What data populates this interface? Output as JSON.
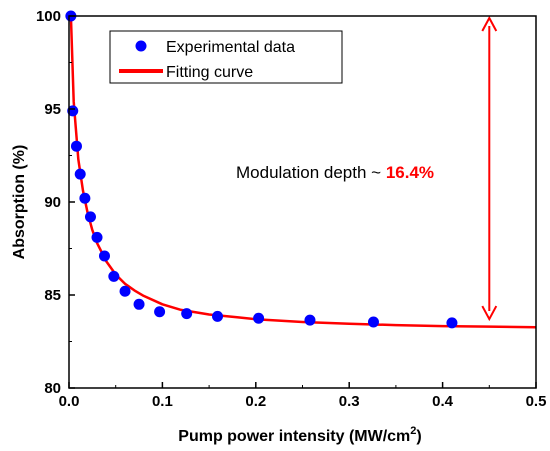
{
  "chart_data": {
    "type": "scatter",
    "xlabel": "Pump power intensity (MW/cm",
    "xlabel_sup": "2",
    "xlabel_end": ")",
    "ylabel": "Absorption (%)",
    "xlim": [
      0,
      0.5
    ],
    "ylim": [
      80,
      100
    ],
    "xticks": [
      "0.0",
      "0.1",
      "0.2",
      "0.3",
      "0.4",
      "0.5"
    ],
    "yticks": [
      "80",
      "85",
      "90",
      "95",
      "100"
    ],
    "grid": false,
    "legend_position": "top-left",
    "series": [
      {
        "name": "Experimental data",
        "kind": "points",
        "color": "#0000ff",
        "x": [
          0.002,
          0.004,
          0.008,
          0.012,
          0.017,
          0.023,
          0.03,
          0.038,
          0.048,
          0.06,
          0.075,
          0.097,
          0.126,
          0.159,
          0.203,
          0.258,
          0.326,
          0.41
        ],
        "y": [
          100.0,
          94.9,
          93.0,
          91.5,
          90.2,
          89.2,
          88.1,
          87.1,
          86.0,
          85.2,
          84.5,
          84.1,
          84.0,
          83.85,
          83.75,
          83.65,
          83.55,
          83.5
        ]
      },
      {
        "name": "Fitting curve",
        "kind": "line",
        "color": "#ff0000",
        "x": [
          0.002,
          0.005,
          0.01,
          0.015,
          0.02,
          0.025,
          0.03,
          0.04,
          0.05,
          0.06,
          0.07,
          0.08,
          0.1,
          0.12,
          0.15,
          0.18,
          0.2,
          0.25,
          0.3,
          0.35,
          0.4,
          0.45,
          0.5
        ],
        "y": [
          100.0,
          95.4,
          92.3,
          90.6,
          89.4,
          88.5,
          87.8,
          86.8,
          86.1,
          85.6,
          85.25,
          84.95,
          84.5,
          84.2,
          83.95,
          83.8,
          83.7,
          83.55,
          83.45,
          83.38,
          83.33,
          83.3,
          83.27
        ]
      }
    ],
    "annotation": {
      "text": "Modulation depth ~ ",
      "value": "16.4%",
      "arrow_x": 0.45,
      "arrow_from": 100,
      "arrow_to": 83.6,
      "color": "#ff0000"
    }
  }
}
